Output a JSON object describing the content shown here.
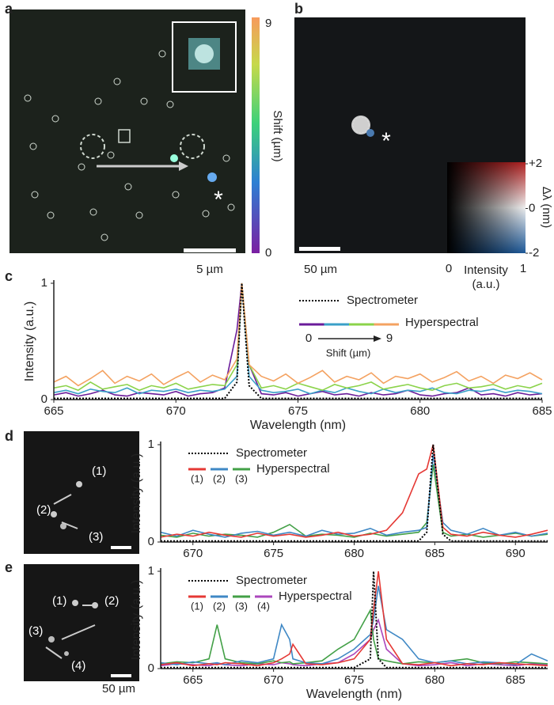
{
  "panel_a": {
    "label": "a",
    "colorbar_max": 9,
    "colorbar_min": 0,
    "colorbar_label": "Shift (µm)",
    "scale_bar": "5 µm",
    "marker": "*"
  },
  "panel_b": {
    "label": "b",
    "scale_bar": "50 µm",
    "marker": "*",
    "colormap_y_ticks": [
      {
        "value": 2,
        "label": "+2"
      },
      0,
      {
        "value": -2,
        "label": "-2"
      }
    ],
    "colormap_y_label": "Δλ (nm)",
    "colormap_x_min": 0,
    "colormap_x_max": 1,
    "colormap_x_label": "Intensity",
    "colormap_x_unit": "(a.u.)"
  },
  "panel_c": {
    "label": "c"
  },
  "panel_d": {
    "label": "d",
    "markers": [
      "(1)",
      "(2)",
      "(3)"
    ]
  },
  "panel_e": {
    "label": "e",
    "markers": [
      "(1)",
      "(2)",
      "(3)",
      "(4)"
    ],
    "scale_bar": "50 µm"
  },
  "chart_data": [
    {
      "type": "line",
      "xlabel": "Wavelength (nm)",
      "ylabel": "Intensity (a.u.)",
      "x": [
        665,
        665.5,
        666,
        666.5,
        667,
        667.5,
        668,
        668.5,
        669,
        669.5,
        670,
        670.5,
        671,
        671.5,
        672,
        672.5,
        672.7,
        673,
        673.5,
        674,
        674.5,
        675,
        675.5,
        676,
        676.5,
        677,
        677.5,
        678,
        678.5,
        679,
        679.5,
        680,
        680.5,
        681,
        681.5,
        682,
        682.5,
        683,
        683.5,
        684,
        684.5,
        685
      ],
      "series": [
        {
          "name": "Spectrometer",
          "color": "#000000",
          "dash": "dotted",
          "values": [
            0.01,
            0.01,
            0.01,
            0.01,
            0.01,
            0.01,
            0.01,
            0.01,
            0.01,
            0.01,
            0.01,
            0.01,
            0.01,
            0.01,
            0.01,
            0.15,
            1,
            0.12,
            0.01,
            0.01,
            0.01,
            0.01,
            0.01,
            0.01,
            0.01,
            0.01,
            0.01,
            0.01,
            0.01,
            0.01,
            0.01,
            0.01,
            0.01,
            0.01,
            0.01,
            0.01,
            0.01,
            0.01,
            0.01,
            0.01,
            0.01,
            0.01
          ]
        },
        {
          "name": "Hyperspectral",
          "color": "#f4a261",
          "values": [
            0.15,
            0.2,
            0.12,
            0.18,
            0.25,
            0.14,
            0.2,
            0.16,
            0.22,
            0.13,
            0.19,
            0.24,
            0.15,
            0.21,
            0.17,
            0.35,
            1,
            0.3,
            0.2,
            0.16,
            0.22,
            0.14,
            0.19,
            0.25,
            0.15,
            0.2,
            0.17,
            0.23,
            0.14,
            0.2,
            0.18,
            0.22,
            0.15,
            0.19,
            0.24,
            0.16,
            0.2,
            0.14,
            0.21,
            0.18,
            0.23,
            0.17
          ]
        },
        {
          "color": "#8bd34a",
          "values": [
            0.1,
            0.12,
            0.08,
            0.15,
            0.09,
            0.11,
            0.13,
            0.08,
            0.12,
            0.1,
            0.14,
            0.09,
            0.11,
            0.13,
            0.12,
            0.3,
            1,
            0.3,
            0.1,
            0.12,
            0.09,
            0.14,
            0.11,
            0.08,
            0.13,
            0.1,
            0.12,
            0.15,
            0.09,
            0.11,
            0.13,
            0.1,
            0.08,
            0.12,
            0.14,
            0.1,
            0.11,
            0.13,
            0.09,
            0.12,
            0.1,
            0.14
          ]
        },
        {
          "color": "#3aa0c8",
          "values": [
            0.06,
            0.08,
            0.05,
            0.09,
            0.07,
            0.06,
            0.1,
            0.05,
            0.08,
            0.07,
            0.09,
            0.06,
            0.08,
            0.07,
            0.09,
            0.2,
            1,
            0.2,
            0.08,
            0.06,
            0.07,
            0.09,
            0.05,
            0.08,
            0.06,
            0.1,
            0.07,
            0.05,
            0.09,
            0.06,
            0.08,
            0.07,
            0.1,
            0.06,
            0.05,
            0.08,
            0.07,
            0.09,
            0.06,
            0.08,
            0.07,
            0.05
          ]
        },
        {
          "color": "#6a1b9a",
          "values": [
            0.04,
            0.06,
            0.03,
            0.05,
            0.08,
            0.04,
            0.03,
            0.06,
            0.05,
            0.04,
            0.07,
            0.03,
            0.05,
            0.06,
            0.1,
            0.6,
            1,
            0.3,
            0.05,
            0.04,
            0.06,
            0.03,
            0.05,
            0.07,
            0.04,
            0.05,
            0.03,
            0.06,
            0.04,
            0.05,
            0.08,
            0.04,
            0.03,
            0.05,
            0.06,
            0.1,
            0.04,
            0.05,
            0.03,
            0.06,
            0.04,
            0.05
          ]
        }
      ],
      "shift_scale": {
        "min": 0,
        "max": 9,
        "label": "Shift (µm)"
      },
      "xlim": [
        665,
        685
      ],
      "xticks": [
        665,
        670,
        675,
        680,
        685
      ],
      "ylim": [
        0,
        1
      ],
      "yticks": [
        0,
        1
      ]
    },
    {
      "type": "line",
      "ylabel": "Intensity (a.u.)",
      "legend_label": "Hyperspectral",
      "x": [
        668,
        669,
        670,
        671,
        672,
        673,
        674,
        675,
        676,
        677,
        678,
        679,
        680,
        681,
        682,
        683,
        684,
        684.5,
        684.9,
        685.5,
        686,
        687,
        688,
        689,
        690,
        691,
        692
      ],
      "series": [
        {
          "name": "Spectrometer",
          "color": "#000000",
          "dash": "dotted",
          "values": [
            0.01,
            0.01,
            0.01,
            0.01,
            0.01,
            0.01,
            0.01,
            0.01,
            0.01,
            0.01,
            0.01,
            0.01,
            0.01,
            0.01,
            0.01,
            0.01,
            0.01,
            0.1,
            1,
            0.08,
            0.01,
            0.01,
            0.01,
            0.01,
            0.01,
            0.01,
            0.01
          ]
        },
        {
          "name": "(1)",
          "color": "#e53935",
          "values": [
            0.05,
            0.08,
            0.06,
            0.1,
            0.07,
            0.05,
            0.09,
            0.06,
            0.08,
            0.05,
            0.07,
            0.1,
            0.06,
            0.08,
            0.12,
            0.3,
            0.7,
            0.75,
            1,
            0.15,
            0.08,
            0.06,
            0.1,
            0.07,
            0.05,
            0.08,
            0.12
          ]
        },
        {
          "name": "(2)",
          "color": "#3f88c5",
          "values": [
            0.1,
            0.06,
            0.12,
            0.08,
            0.05,
            0.09,
            0.11,
            0.07,
            0.1,
            0.06,
            0.12,
            0.08,
            0.09,
            0.14,
            0.07,
            0.1,
            0.12,
            0.15,
            0.9,
            0.2,
            0.12,
            0.08,
            0.14,
            0.07,
            0.1,
            0.06,
            0.09
          ]
        },
        {
          "name": "(3)",
          "color": "#43a047",
          "values": [
            0.07,
            0.05,
            0.09,
            0.06,
            0.08,
            0.07,
            0.05,
            0.1,
            0.18,
            0.06,
            0.08,
            0.07,
            0.05,
            0.09,
            0.06,
            0.08,
            0.1,
            0.2,
            0.8,
            0.1,
            0.06,
            0.08,
            0.05,
            0.07,
            0.09,
            0.06,
            0.08
          ]
        }
      ],
      "xlim": [
        668,
        692
      ],
      "xticks": [
        670,
        675,
        680,
        685,
        690
      ],
      "ylim": [
        0,
        1
      ],
      "yticks": [
        0,
        1
      ]
    },
    {
      "type": "line",
      "xlabel": "Wavelength (nm)",
      "ylabel": "Intensity (a.u.)",
      "legend_label": "Hyperspectral",
      "x": [
        663,
        664,
        665,
        666,
        666.5,
        667,
        668,
        669,
        670,
        670.5,
        671,
        671.2,
        672,
        673,
        674,
        675,
        676,
        676.2,
        676.5,
        677,
        678,
        679,
        680,
        681,
        682,
        683,
        684,
        685,
        686,
        687
      ],
      "series": [
        {
          "name": "Spectrometer",
          "color": "#000000",
          "dash": "dotted",
          "values": [
            0.01,
            0.01,
            0.01,
            0.01,
            0.01,
            0.01,
            0.01,
            0.01,
            0.01,
            0.01,
            0.01,
            0.01,
            0.01,
            0.01,
            0.01,
            0.01,
            0.1,
            1,
            0.1,
            0.01,
            0.01,
            0.01,
            0.01,
            0.01,
            0.01,
            0.01,
            0.01,
            0.01,
            0.01,
            0.01
          ]
        },
        {
          "name": "(1)",
          "color": "#e53935",
          "values": [
            0.04,
            0.06,
            0.03,
            0.05,
            0.04,
            0.06,
            0.05,
            0.03,
            0.06,
            0.1,
            0.15,
            0.25,
            0.05,
            0.04,
            0.06,
            0.1,
            0.3,
            0.6,
            1,
            0.3,
            0.05,
            0.04,
            0.06,
            0.03,
            0.05,
            0.04,
            0.06,
            0.05,
            0.04,
            0.03
          ]
        },
        {
          "name": "(2)",
          "color": "#3f88c5",
          "values": [
            0.06,
            0.04,
            0.07,
            0.05,
            0.06,
            0.04,
            0.08,
            0.06,
            0.1,
            0.45,
            0.3,
            0.1,
            0.06,
            0.05,
            0.1,
            0.2,
            0.35,
            0.5,
            0.85,
            0.4,
            0.3,
            0.1,
            0.06,
            0.08,
            0.05,
            0.07,
            0.06,
            0.04,
            0.15,
            0.08
          ]
        },
        {
          "name": "(3)",
          "color": "#43a047",
          "values": [
            0.05,
            0.07,
            0.06,
            0.1,
            0.45,
            0.1,
            0.06,
            0.05,
            0.08,
            0.06,
            0.07,
            0.05,
            0.06,
            0.08,
            0.2,
            0.3,
            0.6,
            0.3,
            0.1,
            0.08,
            0.05,
            0.07,
            0.06,
            0.08,
            0.1,
            0.06,
            0.05,
            0.07,
            0.06,
            0.05
          ]
        },
        {
          "name": "(4)",
          "color": "#ab47bc",
          "values": [
            0.03,
            0.05,
            0.04,
            0.03,
            0.05,
            0.04,
            0.03,
            0.05,
            0.04,
            0.06,
            0.05,
            0.04,
            0.03,
            0.05,
            0.06,
            0.15,
            0.3,
            0.4,
            0.5,
            0.2,
            0.05,
            0.03,
            0.04,
            0.06,
            0.03,
            0.05,
            0.04,
            0.03,
            0.05,
            0.04
          ]
        }
      ],
      "xlim": [
        663,
        687
      ],
      "xticks": [
        665,
        670,
        675,
        680,
        685
      ],
      "ylim": [
        0,
        1
      ],
      "yticks": [
        0,
        1
      ]
    }
  ]
}
